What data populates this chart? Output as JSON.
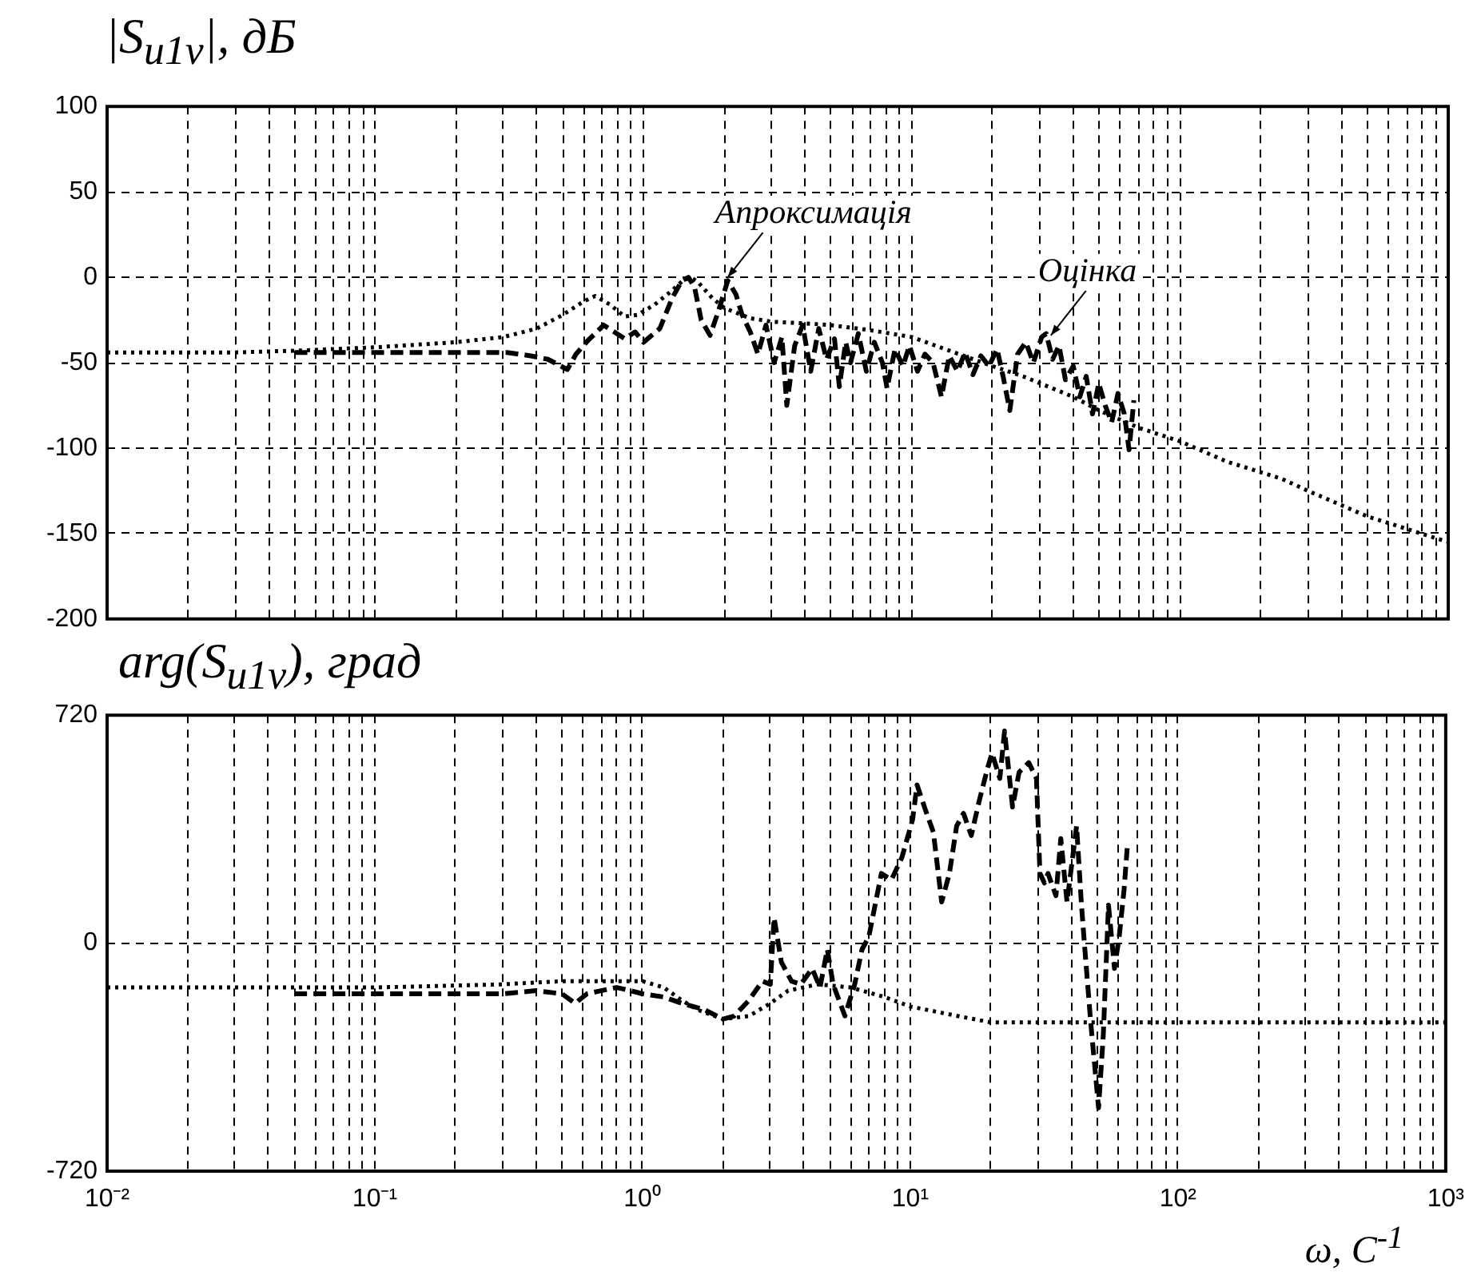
{
  "chart_data": [
    {
      "type": "line",
      "ylabel": "|S$_{u1v}$|, дБ",
      "log": "x",
      "grid": true,
      "marker": "none",
      "tick_labels": "y",
      "xlim": [
        0.01,
        1000
      ],
      "xticks": [
        {
          "value": 0.01,
          "label": null
        },
        {
          "value": 0.02,
          "label": null
        },
        {
          "value": 0.03,
          "label": null
        },
        {
          "value": 0.04,
          "label": null
        },
        {
          "value": 0.05,
          "label": null
        },
        {
          "value": 0.06,
          "label": null
        },
        {
          "value": 0.07,
          "label": null
        },
        {
          "value": 0.08,
          "label": null
        },
        {
          "value": 0.09,
          "label": null
        },
        {
          "value": 0.1,
          "label": null
        },
        {
          "value": 0.2,
          "label": null
        },
        {
          "value": 0.3,
          "label": null
        },
        {
          "value": 0.4,
          "label": null
        },
        {
          "value": 0.5,
          "label": null
        },
        {
          "value": 0.6,
          "label": null
        },
        {
          "value": 0.7,
          "label": null
        },
        {
          "value": 0.8,
          "label": null
        },
        {
          "value": 0.9,
          "label": null
        },
        {
          "value": 1,
          "label": null
        },
        {
          "value": 2,
          "label": null
        },
        {
          "value": 3,
          "label": null
        },
        {
          "value": 4,
          "label": null
        },
        {
          "value": 5,
          "label": null
        },
        {
          "value": 6,
          "label": null
        },
        {
          "value": 7,
          "label": null
        },
        {
          "value": 8,
          "label": null
        },
        {
          "value": 9,
          "label": null
        },
        {
          "value": 10,
          "label": null
        },
        {
          "value": 20,
          "label": null
        },
        {
          "value": 30,
          "label": null
        },
        {
          "value": 40,
          "label": null
        },
        {
          "value": 50,
          "label": null
        },
        {
          "value": 60,
          "label": null
        },
        {
          "value": 70,
          "label": null
        },
        {
          "value": 80,
          "label": null
        },
        {
          "value": 90,
          "label": null
        },
        {
          "value": 100,
          "label": null
        },
        {
          "value": 200,
          "label": null
        },
        {
          "value": 300,
          "label": null
        },
        {
          "value": 400,
          "label": null
        },
        {
          "value": 500,
          "label": null
        },
        {
          "value": 600,
          "label": null
        },
        {
          "value": 700,
          "label": null
        },
        {
          "value": 800,
          "label": null
        },
        {
          "value": 900,
          "label": null
        },
        {
          "value": 1000,
          "label": null
        }
      ],
      "ylim": [
        -200,
        100
      ],
      "yticks": [
        -200,
        -150,
        -100,
        -50,
        0,
        50,
        100
      ],
      "annotations": [
        {
          "text": "Апроксимація",
          "x": 2.06,
          "y": 0
        },
        {
          "text": "Оцінка",
          "x": 33,
          "y": -34
        }
      ],
      "series": [
        {
          "color": "#000000",
          "line_style": "dotted",
          "x": [
            0.01,
            0.03,
            0.05,
            0.1,
            0.2,
            0.3,
            0.4,
            0.5,
            0.6,
            0.66,
            0.75,
            0.85,
            0.95,
            1.1,
            1.25,
            1.4,
            1.5,
            1.6,
            1.8,
            2,
            2.5,
            3,
            4,
            5,
            7,
            10,
            15,
            20,
            26,
            30,
            40,
            50,
            70,
            100,
            150,
            240,
            300,
            500,
            1000
          ],
          "values": [
            -44,
            -44,
            -43,
            -41,
            -38,
            -35,
            -30,
            -22,
            -14,
            -11,
            -16,
            -23,
            -22,
            -16,
            -9,
            -2,
            0,
            -3,
            -12,
            -18,
            -24,
            -26,
            -27,
            -28,
            -31,
            -35,
            -45,
            -52,
            -58,
            -62,
            -70,
            -78,
            -88,
            -96,
            -108,
            -118,
            -125,
            -140,
            -155
          ]
        },
        {
          "color": "#000000",
          "line_style": "dashed",
          "x": [
            0.05,
            0.13,
            0.31,
            0.38,
            0.44,
            0.52,
            0.56,
            0.62,
            0.66,
            0.71,
            0.76,
            0.85,
            0.93,
            1.0,
            1.15,
            1.28,
            1.39,
            1.47,
            1.55,
            1.64,
            1.77,
            1.9,
            2.06,
            2.21,
            2.33,
            2.5,
            2.67,
            2.86,
            3.07,
            3.28,
            3.42,
            3.66,
            3.92,
            4.2,
            4.5,
            4.81,
            5.15,
            5.37,
            5.67,
            5.91,
            6.32,
            6.77,
            7.25,
            7.77,
            8.09,
            8.66,
            9.27,
            9.8,
            10.5,
            11.2,
            12,
            12.9,
            13.8,
            14.8,
            15.8,
            16.9,
            18.1,
            19.4,
            20.8,
            21.9,
            23.2,
            24.8,
            26.6,
            28.4,
            30.5,
            31.7,
            33.5,
            35.4,
            37.4,
            40,
            42.3,
            44.7,
            47.2,
            49.8,
            52.6,
            55.6,
            58.7,
            62,
            64.6,
            67.3
          ],
          "values": [
            -44,
            -44,
            -44,
            -46,
            -48,
            -54,
            -45,
            -37,
            -33,
            -28,
            -31,
            -36,
            -32,
            -38,
            -30,
            -12,
            -2,
            0,
            -6,
            -25,
            -34,
            -20,
            -2,
            -10,
            -22,
            -32,
            -45,
            -28,
            -50,
            -35,
            -75,
            -40,
            -28,
            -55,
            -30,
            -48,
            -36,
            -64,
            -38,
            -50,
            -33,
            -55,
            -38,
            -50,
            -65,
            -42,
            -52,
            -40,
            -55,
            -45,
            -50,
            -70,
            -46,
            -55,
            -44,
            -57,
            -46,
            -52,
            -42,
            -58,
            -78,
            -45,
            -38,
            -50,
            -35,
            -33,
            -48,
            -40,
            -60,
            -52,
            -70,
            -58,
            -80,
            -62,
            -75,
            -85,
            -68,
            -80,
            -101,
            -72
          ]
        }
      ]
    },
    {
      "type": "line",
      "ylabel": "arg(S$_{u1v}$), град",
      "xlabel": "ω, С$^{-1}$",
      "log": "x",
      "grid": true,
      "marker": "none",
      "xlim": [
        0.01,
        1000
      ],
      "xticks": [
        {
          "value": 0.01,
          "label": "10⁻²"
        },
        {
          "value": 0.02,
          "label": null
        },
        {
          "value": 0.03,
          "label": null
        },
        {
          "value": 0.04,
          "label": null
        },
        {
          "value": 0.05,
          "label": null
        },
        {
          "value": 0.06,
          "label": null
        },
        {
          "value": 0.07,
          "label": null
        },
        {
          "value": 0.08,
          "label": null
        },
        {
          "value": 0.09,
          "label": null
        },
        {
          "value": 0.1,
          "label": "10⁻¹"
        },
        {
          "value": 0.2,
          "label": null
        },
        {
          "value": 0.3,
          "label": null
        },
        {
          "value": 0.4,
          "label": null
        },
        {
          "value": 0.5,
          "label": null
        },
        {
          "value": 0.6,
          "label": null
        },
        {
          "value": 0.7,
          "label": null
        },
        {
          "value": 0.8,
          "label": null
        },
        {
          "value": 0.9,
          "label": null
        },
        {
          "value": 1,
          "label": "10⁰"
        },
        {
          "value": 2,
          "label": null
        },
        {
          "value": 3,
          "label": null
        },
        {
          "value": 4,
          "label": null
        },
        {
          "value": 5,
          "label": null
        },
        {
          "value": 6,
          "label": null
        },
        {
          "value": 7,
          "label": null
        },
        {
          "value": 8,
          "label": null
        },
        {
          "value": 9,
          "label": null
        },
        {
          "value": 10,
          "label": "10¹"
        },
        {
          "value": 20,
          "label": null
        },
        {
          "value": 30,
          "label": null
        },
        {
          "value": 40,
          "label": null
        },
        {
          "value": 50,
          "label": null
        },
        {
          "value": 60,
          "label": null
        },
        {
          "value": 70,
          "label": null
        },
        {
          "value": 80,
          "label": null
        },
        {
          "value": 90,
          "label": null
        },
        {
          "value": 100,
          "label": "10²"
        },
        {
          "value": 200,
          "label": null
        },
        {
          "value": 300,
          "label": null
        },
        {
          "value": 400,
          "label": null
        },
        {
          "value": 500,
          "label": null
        },
        {
          "value": 600,
          "label": null
        },
        {
          "value": 700,
          "label": null
        },
        {
          "value": 800,
          "label": null
        },
        {
          "value": 900,
          "label": null
        },
        {
          "value": 1000,
          "label": "10³"
        }
      ],
      "ylim": [
        -720,
        720
      ],
      "yticks": [
        -720,
        0,
        720
      ],
      "series": [
        {
          "color": "#000000",
          "line_style": "dotted",
          "x": [
            0.01,
            0.1,
            0.3,
            0.5,
            0.7,
            1,
            1.2,
            1.4,
            1.6,
            2,
            2.5,
            3,
            3.5,
            4.5,
            6,
            8,
            10,
            15,
            20,
            30,
            100,
            1000
          ],
          "values": [
            -140,
            -140,
            -130,
            -120,
            -120,
            -120,
            -140,
            -180,
            -210,
            -240,
            -230,
            -190,
            -150,
            -130,
            -140,
            -170,
            -200,
            -230,
            -250,
            -250,
            -250,
            -250
          ]
        },
        {
          "color": "#000000",
          "line_style": "dashed",
          "x": [
            0.05,
            0.1,
            0.2,
            0.3,
            0.4,
            0.5,
            0.56,
            0.62,
            0.7,
            0.8,
            0.9,
            1,
            1.2,
            1.4,
            1.7,
            2,
            2.2,
            2.5,
            2.8,
            3,
            3.1,
            3.3,
            3.6,
            3.9,
            4.3,
            4.6,
            4.9,
            5.15,
            5.7,
            6.2,
            6.6,
            7,
            7.8,
            8.5,
            9.3,
            10.2,
            10.6,
            11.4,
            12.2,
            13.1,
            14,
            14.9,
            15.8,
            16.9,
            18.1,
            19.4,
            20.2,
            21.6,
            22.5,
            24.1,
            25.5,
            27.7,
            29.6,
            30.5,
            31.7,
            32.7,
            35,
            36.5,
            38.5,
            41.8,
            43.6,
            44.7,
            47.2,
            50.5,
            52.6,
            55,
            57.9,
            60.3,
            62.9,
            64.6
          ],
          "values": [
            -160,
            -160,
            -160,
            -160,
            -150,
            -160,
            -190,
            -160,
            -150,
            -140,
            -150,
            -160,
            -170,
            -190,
            -210,
            -240,
            -230,
            -180,
            -120,
            -130,
            80,
            -60,
            -120,
            -130,
            -80,
            -140,
            -20,
            -130,
            -230,
            -130,
            -20,
            20,
            220,
            200,
            270,
            390,
            500,
            420,
            350,
            130,
            220,
            370,
            410,
            340,
            450,
            550,
            600,
            520,
            670,
            430,
            540,
            570,
            520,
            220,
            190,
            220,
            150,
            330,
            130,
            370,
            120,
            0,
            -250,
            -520,
            -290,
            120,
            -80,
            20,
            170,
            300
          ]
        }
      ]
    }
  ]
}
